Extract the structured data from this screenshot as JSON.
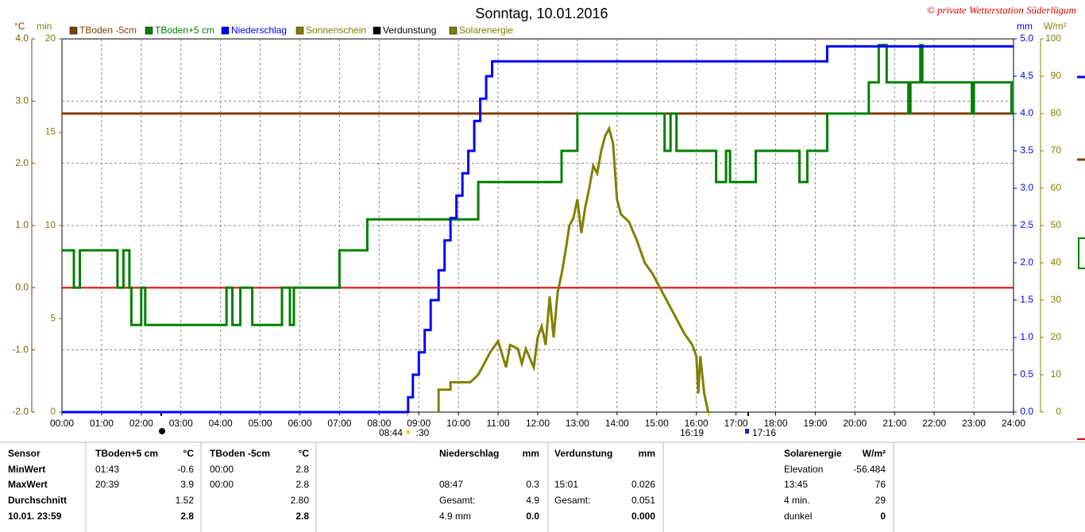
{
  "chart_data": {
    "type": "line",
    "title": "Sonntag, 10.01.2016",
    "credit": "© private Wetterstation Süderlügum",
    "ylabel": "°C",
    "y3label": "min",
    "y2label": "mm",
    "y4label": "W/m²",
    "xlim": [
      0,
      24
    ],
    "xticks": [
      {
        "value": 0,
        "label": "00:00"
      },
      {
        "value": 1,
        "label": "01:00"
      },
      {
        "value": 2,
        "label": "02:00"
      },
      {
        "value": 3,
        "label": "03:00"
      },
      {
        "value": 4,
        "label": "04:00"
      },
      {
        "value": 5,
        "label": "05:00"
      },
      {
        "value": 6,
        "label": "06:00"
      },
      {
        "value": 7,
        "label": "07:00"
      },
      {
        "value": 8,
        "label": "08:00"
      },
      {
        "value": 9,
        "label": "09:00"
      },
      {
        "value": 10,
        "label": "10:00"
      },
      {
        "value": 11,
        "label": "11:00"
      },
      {
        "value": 12,
        "label": "12:00"
      },
      {
        "value": 13,
        "label": "13:00"
      },
      {
        "value": 14,
        "label": "14:00"
      },
      {
        "value": 15,
        "label": "15:00"
      },
      {
        "value": 16,
        "label": "16:00"
      },
      {
        "value": 17,
        "label": "17:00"
      },
      {
        "value": 18,
        "label": "18:00"
      },
      {
        "value": 19,
        "label": "19:00"
      },
      {
        "value": 20,
        "label": "20:00"
      },
      {
        "value": 21,
        "label": "21:00"
      },
      {
        "value": 22,
        "label": "22:00"
      },
      {
        "value": 23,
        "label": "23:00"
      },
      {
        "value": 24,
        "label": "24:00"
      }
    ],
    "ylim": [
      -2,
      4
    ],
    "yticks": [
      {
        "value": -2,
        "label": "-2.0"
      },
      {
        "value": -1,
        "label": "-1.0"
      },
      {
        "value": 0,
        "label": "0.0"
      },
      {
        "value": 1,
        "label": "1.0"
      },
      {
        "value": 2,
        "label": "2.0"
      },
      {
        "value": 3,
        "label": "3.0"
      },
      {
        "value": 4,
        "label": "4.0"
      }
    ],
    "y3lim": [
      0,
      20
    ],
    "y3ticks": [
      0,
      5,
      10,
      15,
      20
    ],
    "y2lim": [
      0,
      5
    ],
    "y2ticks": [
      {
        "value": 0,
        "label": "0.0"
      },
      {
        "value": 0.5,
        "label": "0.5"
      },
      {
        "value": 1,
        "label": "1.0"
      },
      {
        "value": 1.5,
        "label": "1.5"
      },
      {
        "value": 2,
        "label": "2.0"
      },
      {
        "value": 2.5,
        "label": "2.5"
      },
      {
        "value": 3,
        "label": "3.0"
      },
      {
        "value": 3.5,
        "label": "3.5"
      },
      {
        "value": 4,
        "label": "4.0"
      },
      {
        "value": 4.5,
        "label": "4.5"
      },
      {
        "value": 5,
        "label": "5.0"
      }
    ],
    "y4lim": [
      0,
      100
    ],
    "y4ticks": [
      0,
      10,
      20,
      30,
      40,
      50,
      60,
      70,
      80,
      90,
      100
    ],
    "grid": true,
    "annotations": [
      "08:44",
      ":30",
      "16:19",
      "17:16"
    ],
    "series": [
      {
        "name": "TBoden -5cm",
        "color": "#7f3f00",
        "axis": "y",
        "x": [
          0,
          24
        ],
        "values": [
          2.8,
          2.8
        ]
      },
      {
        "name": "TBoden+5 cm",
        "color": "#008000",
        "axis": "y",
        "x": [
          0,
          0.3,
          0.3,
          0.45,
          0.45,
          1.4,
          1.4,
          1.55,
          1.55,
          1.7,
          1.7,
          1.75,
          1.75,
          2.0,
          2.0,
          2.1,
          2.1,
          4.15,
          4.15,
          4.3,
          4.3,
          4.5,
          4.5,
          4.8,
          4.8,
          5.55,
          5.55,
          5.75,
          5.75,
          5.85,
          5.85,
          7.0,
          7.0,
          7.7,
          7.7,
          10.5,
          10.5,
          12.6,
          12.6,
          13.0,
          13.0,
          15.2,
          15.2,
          15.35,
          15.35,
          15.5,
          15.5,
          16.5,
          16.5,
          16.75,
          16.75,
          16.85,
          16.85,
          17.5,
          17.5,
          18.6,
          18.6,
          18.8,
          18.8,
          19.3,
          19.3,
          20.35,
          20.35,
          20.6,
          20.6,
          20.8,
          20.8,
          21.35,
          21.35,
          21.4,
          21.4,
          21.65,
          21.65,
          21.7,
          21.7,
          22.95,
          22.95,
          23.0,
          23.0,
          23.95,
          23.95,
          24
        ],
        "values": [
          0.6,
          0.6,
          0,
          0,
          0.6,
          0.6,
          0,
          0,
          0.6,
          0.6,
          0,
          0,
          -0.6,
          -0.6,
          0,
          0,
          -0.6,
          -0.6,
          0,
          0,
          -0.6,
          -0.6,
          0,
          0,
          -0.6,
          -0.6,
          0,
          0,
          -0.6,
          -0.6,
          0,
          0,
          0.6,
          0.6,
          1.1,
          1.1,
          1.7,
          1.7,
          2.2,
          2.2,
          2.8,
          2.8,
          2.2,
          2.2,
          2.8,
          2.8,
          2.2,
          2.2,
          1.7,
          1.7,
          2.2,
          2.2,
          1.7,
          1.7,
          2.2,
          2.2,
          1.7,
          1.7,
          2.2,
          2.2,
          2.8,
          2.8,
          3.3,
          3.3,
          3.9,
          3.9,
          3.3,
          3.3,
          2.8,
          2.8,
          3.3,
          3.3,
          3.9,
          3.9,
          3.3,
          3.3,
          2.8,
          2.8,
          3.3,
          3.3,
          2.8,
          2.8
        ]
      },
      {
        "name": "Niederschlag",
        "color": "#0000ff",
        "axis": "y2",
        "x": [
          0,
          8.73,
          8.73,
          8.85,
          8.85,
          9.0,
          9.0,
          9.15,
          9.15,
          9.3,
          9.3,
          9.5,
          9.5,
          9.65,
          9.65,
          9.8,
          9.8,
          9.95,
          9.95,
          10.1,
          10.1,
          10.25,
          10.25,
          10.4,
          10.4,
          10.55,
          10.55,
          10.7,
          10.7,
          10.85,
          10.85,
          19.3,
          19.3,
          24
        ],
        "values": [
          0,
          0,
          0.2,
          0.2,
          0.5,
          0.5,
          0.8,
          0.8,
          1.1,
          1.1,
          1.5,
          1.5,
          1.9,
          1.9,
          2.3,
          2.3,
          2.6,
          2.6,
          2.9,
          2.9,
          3.2,
          3.2,
          3.5,
          3.5,
          3.9,
          3.9,
          4.2,
          4.2,
          4.5,
          4.5,
          4.7,
          4.7,
          4.9,
          4.9
        ]
      },
      {
        "name": "Sonnenschein",
        "color": "#808000",
        "axis": "y3",
        "x": [],
        "values": []
      },
      {
        "name": "Verdunstung",
        "color": "#000000",
        "axis": "y2",
        "x": [],
        "values": []
      },
      {
        "name": "Solarenergie",
        "color": "#808000",
        "axis": "y4",
        "x": [
          9.5,
          9.5,
          9.8,
          9.8,
          10.3,
          10.5,
          10.6,
          10.8,
          11.0,
          11.2,
          11.3,
          11.5,
          11.6,
          11.7,
          11.9,
          12.0,
          12.1,
          12.2,
          12.3,
          12.4,
          12.5,
          12.6,
          12.7,
          12.8,
          12.9,
          13.0,
          13.1,
          13.2,
          13.3,
          13.4,
          13.5,
          13.6,
          13.7,
          13.8,
          13.9,
          14.0,
          14.1,
          14.3,
          14.5,
          14.7,
          14.9,
          15.1,
          15.3,
          15.5,
          15.7,
          15.9,
          16.0,
          16.05,
          16.1,
          16.2,
          16.3
        ],
        "values": [
          0,
          6,
          6,
          8,
          8,
          10,
          12,
          16,
          19,
          12,
          18,
          17,
          13,
          17,
          12,
          20,
          23,
          18,
          31,
          20,
          32,
          37,
          43,
          50,
          52,
          57,
          48,
          55,
          60,
          66,
          64,
          70,
          74,
          76,
          72,
          57,
          53,
          51,
          46,
          40,
          37,
          33,
          29,
          25,
          21,
          18,
          15,
          5,
          15,
          5,
          0
        ]
      }
    ]
  },
  "table": {
    "rows": [
      [
        "Sensor",
        "TBoden+5 cm",
        "°C",
        "TBoden -5cm",
        "°C",
        "Niederschlag",
        "mm",
        "Verdunstung",
        "mm",
        "Solarenergie",
        "W/m²"
      ],
      [
        "MinWert",
        "01:43",
        "-0.6",
        "00:00",
        "2.8",
        null,
        null,
        null,
        null,
        "Elevation",
        "-56.484"
      ],
      [
        "MaxWert",
        "20:39",
        "3.9",
        "00:00",
        "2.8",
        "08:47",
        "0.3",
        "15:01",
        "0.026",
        "13:45",
        "76"
      ],
      [
        "Durchschnitt",
        null,
        "1.52",
        null,
        "2.80",
        "Gesamt:",
        "4.9",
        "Gesamt:",
        "0.051",
        "4 min.",
        "29"
      ],
      [
        "10.01. 23:59",
        null,
        "2.8",
        null,
        "2.8",
        "4.9 mm",
        "0.0",
        null,
        "0.000",
        "dunkel",
        "0"
      ]
    ]
  }
}
